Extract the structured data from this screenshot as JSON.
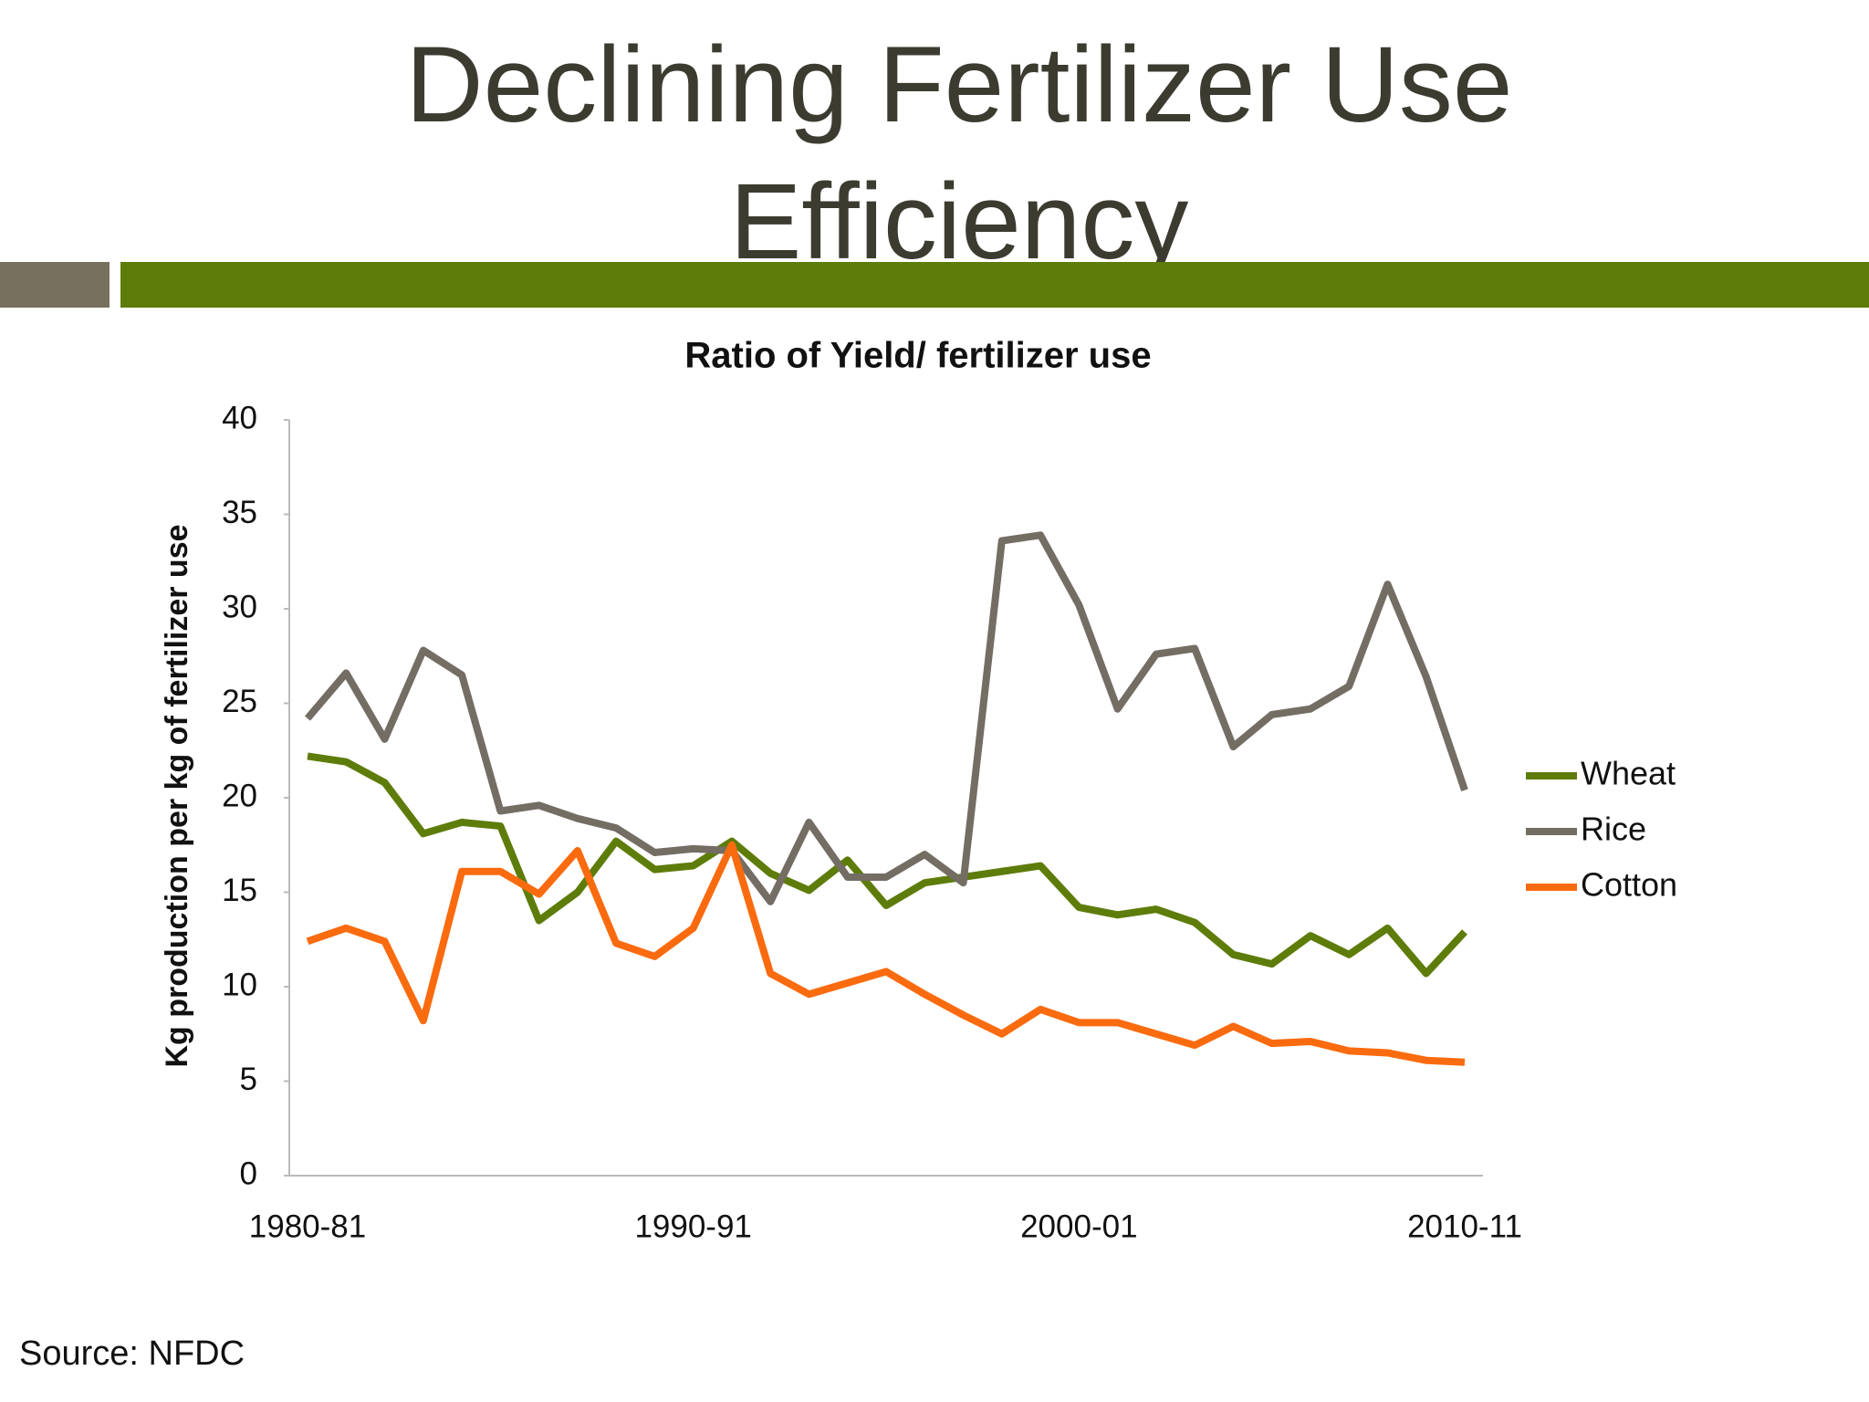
{
  "title": "Declining Fertilizer Use Efficiency",
  "source": "Source: NFDC",
  "chart_data": {
    "type": "line",
    "title": "Ratio of Yield/ fertilizer use",
    "ylabel": "Kg production per kg of fertilizer use",
    "categories": [
      "1980-81",
      null,
      null,
      null,
      null,
      null,
      null,
      null,
      null,
      null,
      "1990-91",
      null,
      null,
      null,
      null,
      null,
      null,
      null,
      null,
      null,
      "2000-01",
      null,
      null,
      null,
      null,
      null,
      null,
      null,
      null,
      null,
      "2010-11"
    ],
    "series": [
      {
        "name": "Wheat",
        "color": "#5e7c0a",
        "values": [
          22.2,
          21.9,
          20.8,
          18.1,
          18.7,
          18.5,
          13.5,
          15.0,
          17.7,
          16.2,
          16.4,
          17.7,
          16.0,
          15.1,
          16.7,
          14.3,
          15.5,
          15.8,
          16.1,
          16.4,
          14.2,
          13.8,
          14.1,
          13.4,
          11.7,
          11.2,
          12.7,
          11.7,
          13.1,
          10.7,
          12.9
        ]
      },
      {
        "name": "Rice",
        "color": "#736d64",
        "values": [
          24.2,
          26.6,
          23.1,
          27.8,
          26.5,
          19.3,
          19.6,
          18.9,
          18.4,
          17.1,
          17.3,
          17.2,
          14.5,
          18.7,
          15.8,
          15.8,
          17.0,
          15.5,
          33.6,
          33.9,
          30.2,
          24.7,
          27.6,
          27.9,
          22.7,
          24.4,
          24.7,
          25.9,
          31.3,
          26.4,
          20.4
        ]
      },
      {
        "name": "Cotton",
        "color": "#fa6b0f",
        "values": [
          12.4,
          13.1,
          12.4,
          8.2,
          16.1,
          16.1,
          14.9,
          17.2,
          12.3,
          11.6,
          13.1,
          17.5,
          10.7,
          9.6,
          10.2,
          10.8,
          9.6,
          8.5,
          7.5,
          8.8,
          8.1,
          8.1,
          7.5,
          6.9,
          7.9,
          7.0,
          7.1,
          6.6,
          6.5,
          6.1,
          6.0
        ]
      }
    ],
    "ylim": [
      0,
      40
    ],
    "yticks": [
      0,
      5,
      10,
      15,
      20,
      25,
      30,
      35,
      40
    ],
    "grid": false,
    "legend": "right"
  }
}
